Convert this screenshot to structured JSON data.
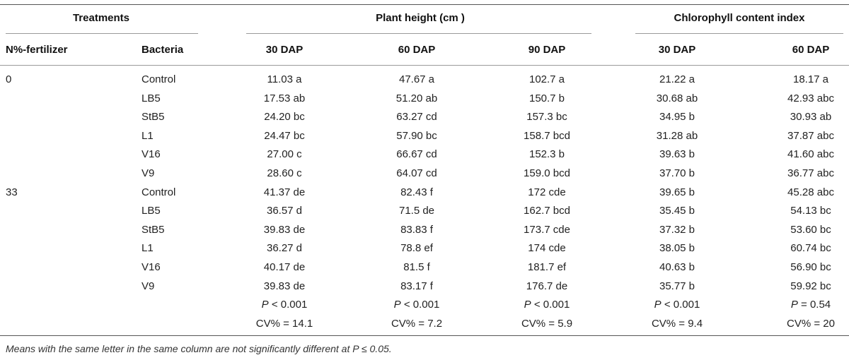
{
  "table": {
    "group_headers": {
      "treatments": "Treatments",
      "plant_height": "Plant height (cm )",
      "chlorophyll": "Chlorophyll content index"
    },
    "column_headers": [
      "N%-fertilizer",
      "Bacteria",
      "30 DAP",
      "60 DAP",
      "90 DAP",
      "30 DAP",
      "60 DAP"
    ],
    "rows": [
      {
        "n": "0",
        "bacteria": "Control",
        "ph30": "11.03 a",
        "ph60": "47.67 a",
        "ph90": "102.7 a",
        "cc30": "21.22 a",
        "cc60": "18.17 a"
      },
      {
        "n": "",
        "bacteria": "LB5",
        "ph30": "17.53 ab",
        "ph60": "51.20 ab",
        "ph90": "150.7 b",
        "cc30": "30.68 ab",
        "cc60": "42.93 abc"
      },
      {
        "n": "",
        "bacteria": "StB5",
        "ph30": "24.20 bc",
        "ph60": "63.27 cd",
        "ph90": "157.3 bc",
        "cc30": "34.95 b",
        "cc60": "30.93 ab"
      },
      {
        "n": "",
        "bacteria": "L1",
        "ph30": "24.47 bc",
        "ph60": "57.90 bc",
        "ph90": "158.7 bcd",
        "cc30": "31.28 ab",
        "cc60": "37.87 abc"
      },
      {
        "n": "",
        "bacteria": "V16",
        "ph30": "27.00 c",
        "ph60": "66.67 cd",
        "ph90": "152.3 b",
        "cc30": "39.63 b",
        "cc60": "41.60 abc"
      },
      {
        "n": "",
        "bacteria": "V9",
        "ph30": "28.60 c",
        "ph60": "64.07 cd",
        "ph90": "159.0 bcd",
        "cc30": "37.70 b",
        "cc60": "36.77 abc"
      },
      {
        "n": "33",
        "bacteria": "Control",
        "ph30": "41.37 de",
        "ph60": "82.43 f",
        "ph90": "172 cde",
        "cc30": "39.65 b",
        "cc60": "45.28 abc"
      },
      {
        "n": "",
        "bacteria": "LB5",
        "ph30": "36.57 d",
        "ph60": "71.5 de",
        "ph90": "162.7 bcd",
        "cc30": "35.45 b",
        "cc60": "54.13 bc"
      },
      {
        "n": "",
        "bacteria": "StB5",
        "ph30": "39.83 de",
        "ph60": "83.83 f",
        "ph90": "173.7 cde",
        "cc30": "37.32 b",
        "cc60": "53.60 bc"
      },
      {
        "n": "",
        "bacteria": "L1",
        "ph30": "36.27 d",
        "ph60": "78.8 ef",
        "ph90": "174 cde",
        "cc30": "38.05 b",
        "cc60": "60.74 bc"
      },
      {
        "n": "",
        "bacteria": "V16",
        "ph30": "40.17 de",
        "ph60": "81.5 f",
        "ph90": "181.7 ef",
        "cc30": "40.63 b",
        "cc60": "56.90 bc"
      },
      {
        "n": "",
        "bacteria": "V9",
        "ph30": "39.83 de",
        "ph60": "83.17 f",
        "ph90": "176.7 de",
        "cc30": "35.77 b",
        "cc60": "59.92 bc"
      }
    ],
    "p_values": [
      {
        "sym": "P",
        "text": " < 0.001"
      },
      {
        "sym": "P",
        "text": " < 0.001"
      },
      {
        "sym": "P",
        "text": " < 0.001"
      },
      {
        "sym": "P",
        "text": " < 0.001"
      },
      {
        "sym": "P",
        "text": " = 0.54"
      }
    ],
    "cv_values": [
      "CV% = 14.1",
      "CV% = 7.2",
      "CV% = 5.9",
      "CV% = 9.4",
      "CV% = 20"
    ]
  },
  "footnote": "Means with the same letter in the same column are not significantly different at P ≤ 0.05."
}
